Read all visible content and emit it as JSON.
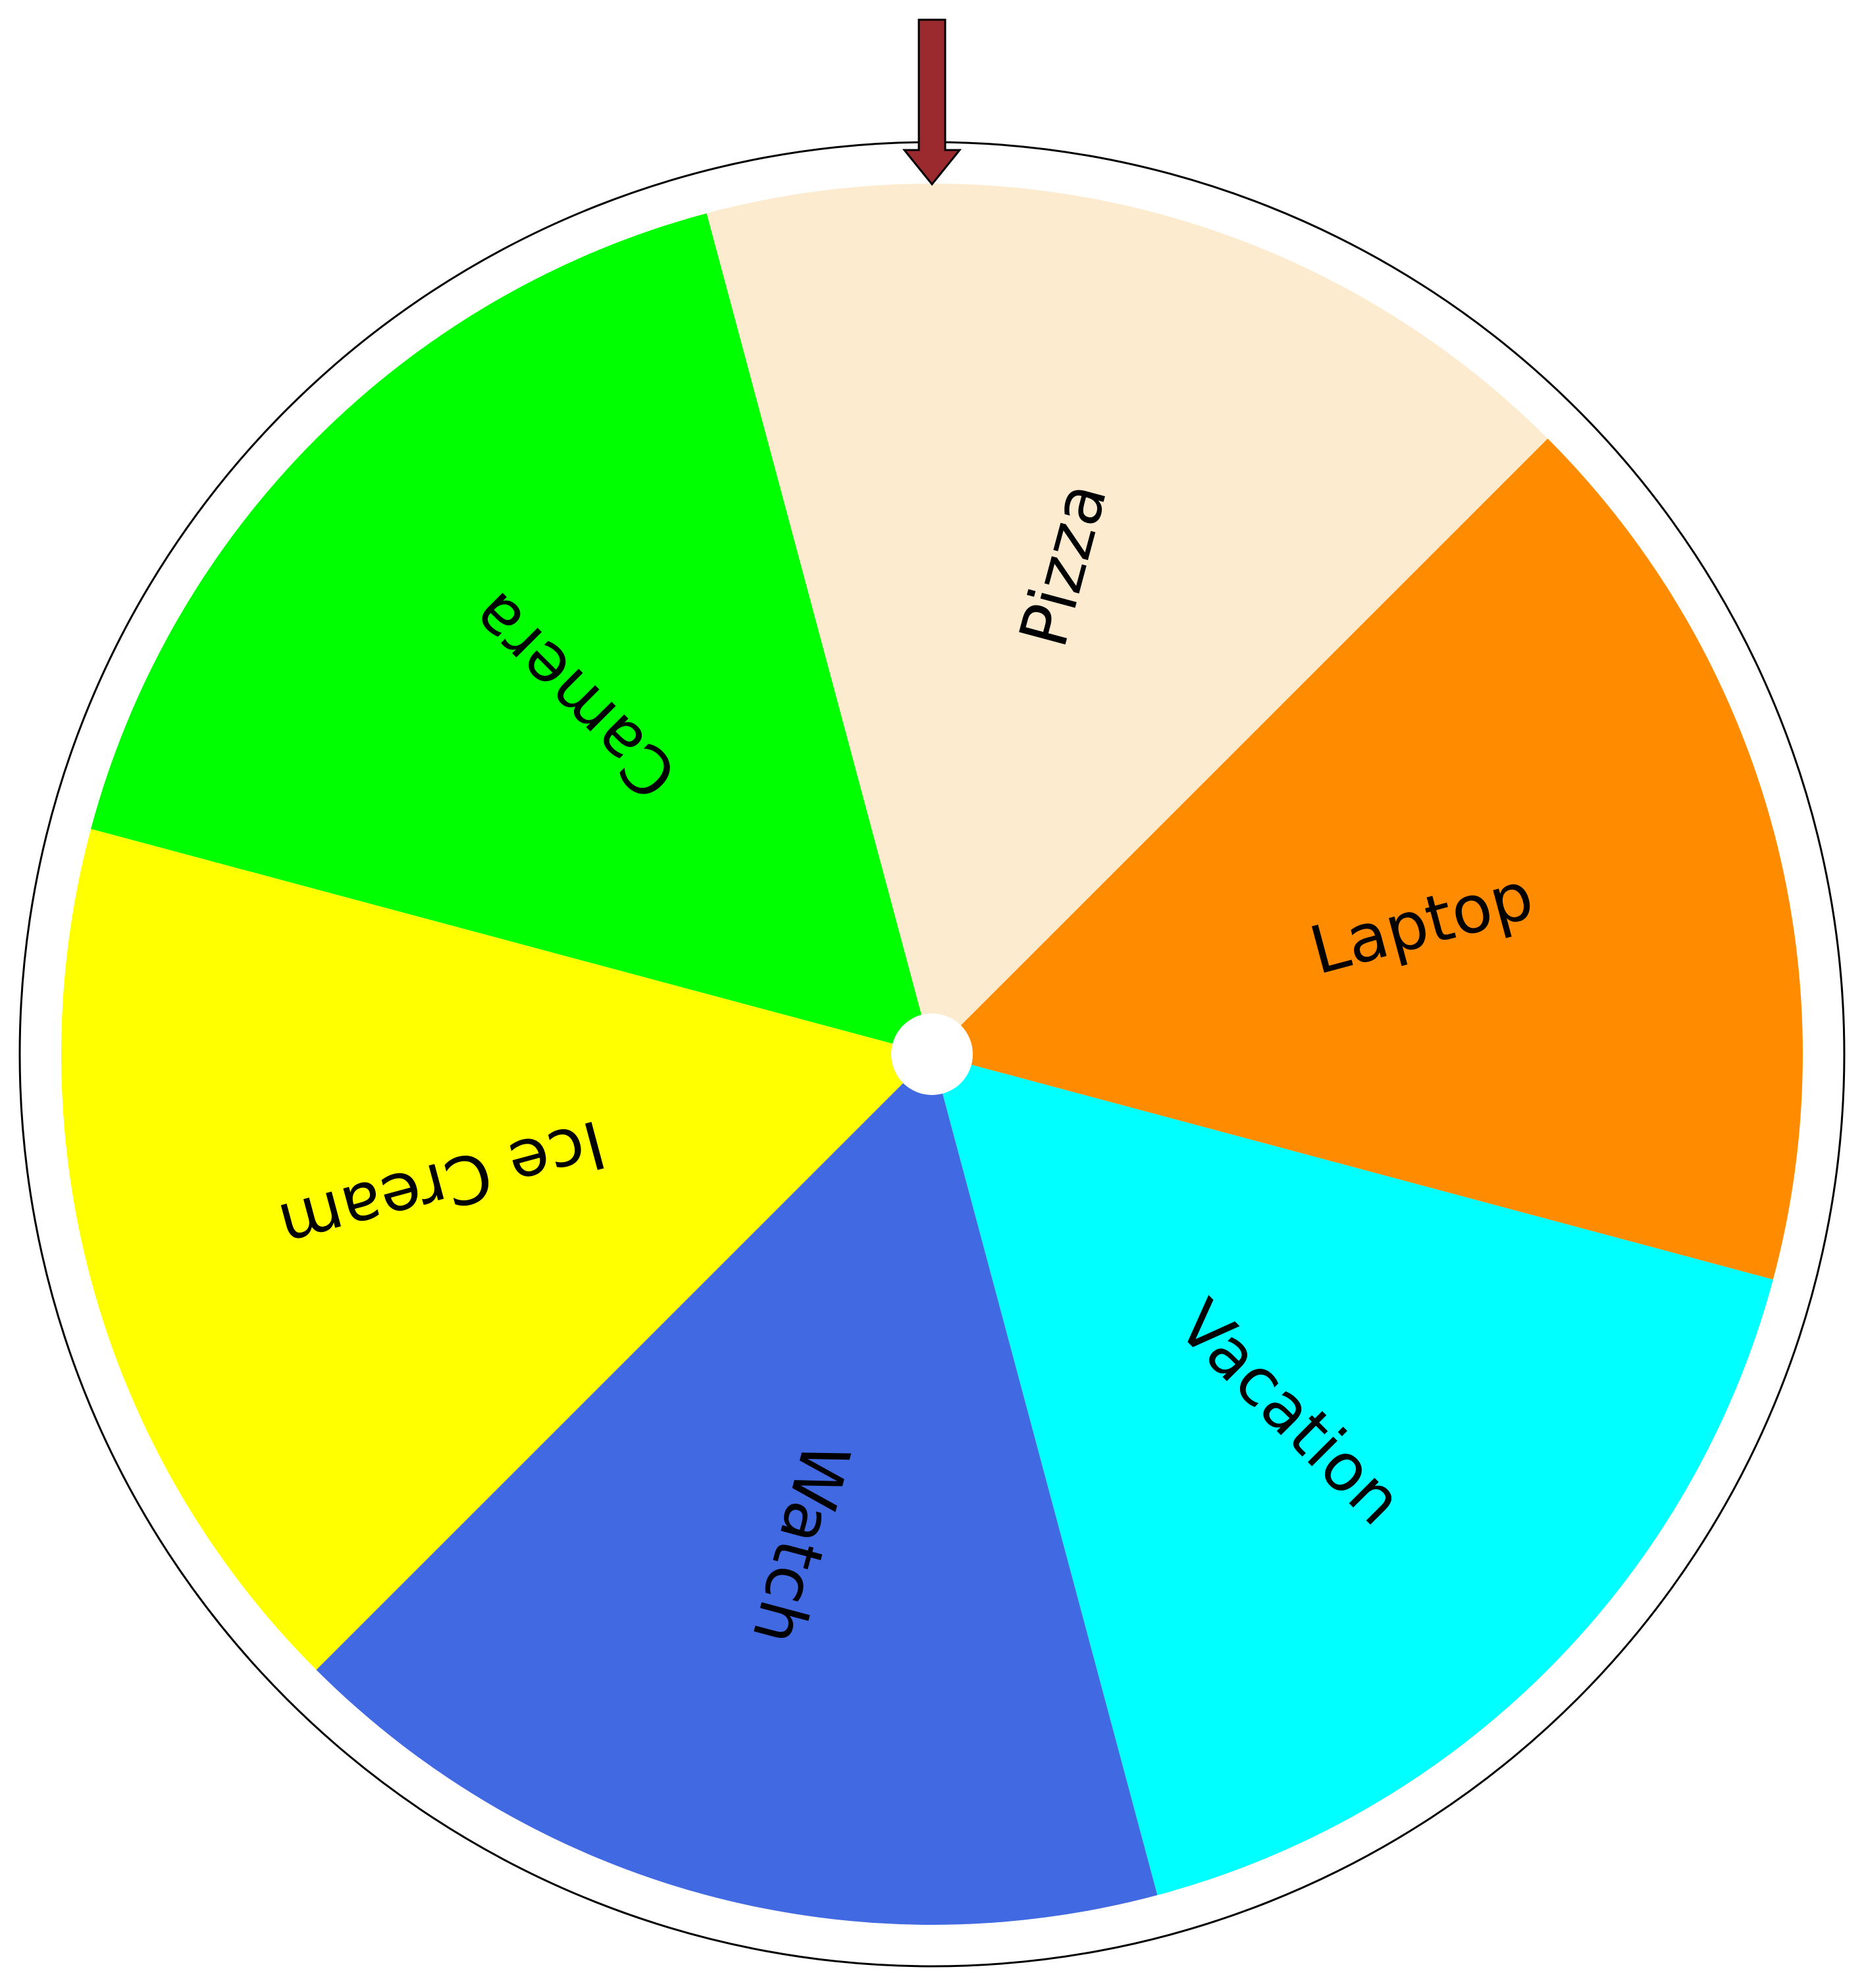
{
  "wheel": {
    "segments": [
      {
        "label": "Pizza",
        "color": "#FDEBD0"
      },
      {
        "label": "Laptop",
        "color": "#FF8C00"
      },
      {
        "label": "Vacation",
        "color": "#00FFFF"
      },
      {
        "label": "Watch",
        "color": "#4169E1"
      },
      {
        "label": "Ice Cream",
        "color": "#FFFF00"
      },
      {
        "label": "Camera",
        "color": "#00FF00"
      }
    ],
    "rim_color": "#FFFFFF",
    "rim_outline_color": "#000000",
    "hub_color": "#FFFFFF",
    "pointer": {
      "fill": "#9B2A2E",
      "stroke": "#000000",
      "selected_segment": "Pizza"
    }
  }
}
